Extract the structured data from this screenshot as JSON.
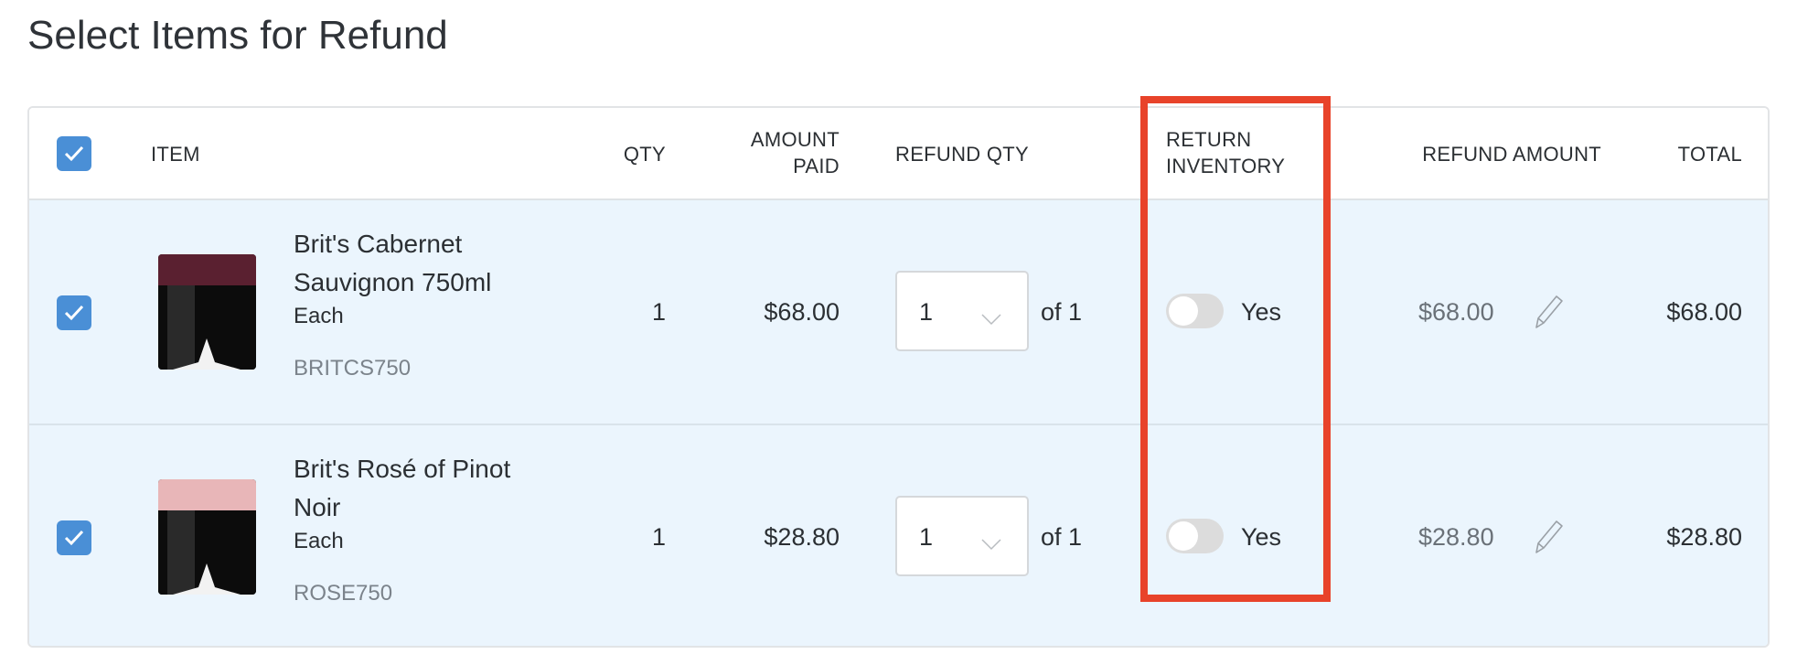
{
  "title": "Select Items for Refund",
  "colors": {
    "accent": "#4a8fd6",
    "row_bg": "#ebf5fd",
    "highlight": "#e8432a"
  },
  "columns": [
    "ITEM",
    "QTY",
    "AMOUNT PAID",
    "REFUND QTY",
    "RETURN INVENTORY",
    "REFUND AMOUNT",
    "TOTAL"
  ],
  "columns_wrapped": {
    "amount_paid": [
      "AMOUNT",
      "PAID"
    ],
    "return_inventory": [
      "RETURN",
      "INVENTORY"
    ]
  },
  "select_all_checked": true,
  "rows": [
    {
      "checked": true,
      "name_line1": "Brit's Cabernet",
      "name_line2": "Sauvignon 750ml",
      "unit": "Each",
      "sku": "BRITCS750",
      "qty": "1",
      "amount_paid": "$68.00",
      "refund_qty": "1",
      "of": "of 1",
      "return_inventory_on": false,
      "toggle_label": "Yes",
      "refund_amount": "$68.00",
      "total": "$68.00",
      "cap_color": "#5a2030"
    },
    {
      "checked": true,
      "name_line1": "Brit's Rosé of Pinot",
      "name_line2": "Noir",
      "unit": "Each",
      "sku": "ROSE750",
      "qty": "1",
      "amount_paid": "$28.80",
      "refund_qty": "1",
      "of": "of 1",
      "return_inventory_on": false,
      "toggle_label": "Yes",
      "refund_amount": "$28.80",
      "total": "$28.80",
      "cap_color": "#e8b6b8"
    }
  ]
}
